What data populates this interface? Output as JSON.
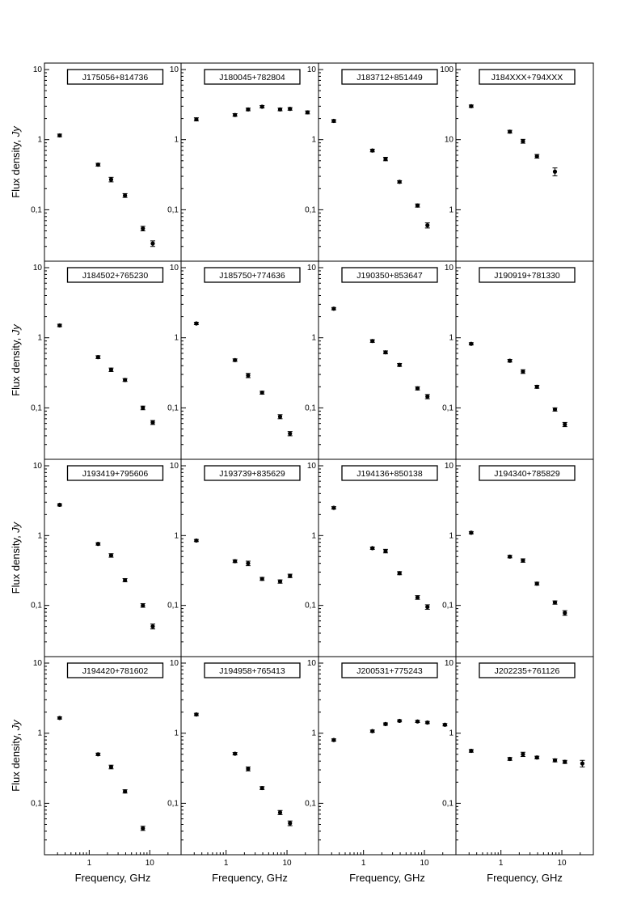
{
  "figure": {
    "y_label": "Flux density, ",
    "y_label_italic": "Jy",
    "x_label": "Frequency, GHz",
    "ticks": {
      "x": [
        "1",
        "10"
      ],
      "y_small": [
        "0,1",
        "1",
        "10"
      ],
      "y_large": [
        "1",
        "10",
        "100"
      ]
    }
  },
  "chart_data": [
    {
      "type": "scatter",
      "title": "J175056+814736",
      "xscale": "log",
      "yscale": "log",
      "xlim": [
        0.2,
        30
      ],
      "ylim": [
        0.02,
        10
      ],
      "x": [
        0.325,
        1.4,
        2.3,
        3.9,
        7.7,
        11.2
      ],
      "y": [
        1.15,
        0.44,
        0.27,
        0.16,
        0.054,
        0.033
      ],
      "err": [
        0.05,
        0.02,
        0.02,
        0.01,
        0.004,
        0.003
      ]
    },
    {
      "type": "scatter",
      "title": "J180045+782804",
      "xscale": "log",
      "yscale": "log",
      "xlim": [
        0.2,
        30
      ],
      "ylim": [
        0.02,
        10
      ],
      "x": [
        0.325,
        1.4,
        2.3,
        3.9,
        7.7,
        11.2,
        21.7
      ],
      "y": [
        1.95,
        2.25,
        2.7,
        2.95,
        2.7,
        2.75,
        2.45
      ],
      "err": [
        0.1,
        0.1,
        0.12,
        0.12,
        0.12,
        0.12,
        0.12
      ]
    },
    {
      "type": "scatter",
      "title": "J183712+851449",
      "xscale": "log",
      "yscale": "log",
      "xlim": [
        0.2,
        30
      ],
      "ylim": [
        0.02,
        10
      ],
      "x": [
        0.325,
        1.4,
        2.3,
        3.9,
        7.7,
        11.2
      ],
      "y": [
        1.85,
        0.7,
        0.53,
        0.25,
        0.115,
        0.06
      ],
      "err": [
        0.08,
        0.03,
        0.03,
        0.01,
        0.006,
        0.005
      ]
    },
    {
      "type": "scatter",
      "title": "J184XXX+794XXX",
      "xscale": "log",
      "yscale": "log",
      "xlim": [
        0.2,
        30
      ],
      "ylim": [
        0.2,
        100
      ],
      "x": [
        0.325,
        1.4,
        2.3,
        3.9,
        7.7
      ],
      "y": [
        30,
        13,
        9.5,
        5.8,
        3.5
      ],
      "err": [
        1.2,
        0.6,
        0.6,
        0.35,
        0.45
      ]
    },
    {
      "type": "scatter",
      "title": "J184502+765230",
      "xscale": "log",
      "yscale": "log",
      "xlim": [
        0.2,
        30
      ],
      "ylim": [
        0.02,
        10
      ],
      "x": [
        0.325,
        1.4,
        2.3,
        3.9,
        7.7,
        11.2
      ],
      "y": [
        1.5,
        0.53,
        0.35,
        0.25,
        0.1,
        0.062
      ],
      "err": [
        0.06,
        0.025,
        0.02,
        0.012,
        0.006,
        0.004
      ]
    },
    {
      "type": "scatter",
      "title": "J185750+774636",
      "xscale": "log",
      "yscale": "log",
      "xlim": [
        0.2,
        30
      ],
      "ylim": [
        0.02,
        10
      ],
      "x": [
        0.325,
        1.4,
        2.3,
        3.9,
        7.7,
        11.2
      ],
      "y": [
        1.6,
        0.48,
        0.29,
        0.165,
        0.075,
        0.043
      ],
      "err": [
        0.06,
        0.02,
        0.02,
        0.008,
        0.005,
        0.003
      ]
    },
    {
      "type": "scatter",
      "title": "J190350+853647",
      "xscale": "log",
      "yscale": "log",
      "xlim": [
        0.2,
        30
      ],
      "ylim": [
        0.02,
        10
      ],
      "x": [
        0.325,
        1.4,
        2.3,
        3.9,
        7.7,
        11.2
      ],
      "y": [
        2.6,
        0.9,
        0.62,
        0.41,
        0.19,
        0.145
      ],
      "err": [
        0.1,
        0.04,
        0.03,
        0.02,
        0.01,
        0.01
      ]
    },
    {
      "type": "scatter",
      "title": "J190919+781330",
      "xscale": "log",
      "yscale": "log",
      "xlim": [
        0.2,
        30
      ],
      "ylim": [
        0.02,
        10
      ],
      "x": [
        0.325,
        1.4,
        2.3,
        3.9,
        7.7,
        11.2
      ],
      "y": [
        0.82,
        0.47,
        0.33,
        0.2,
        0.095,
        0.058
      ],
      "err": [
        0.03,
        0.02,
        0.02,
        0.01,
        0.005,
        0.004
      ]
    },
    {
      "type": "scatter",
      "title": "J193419+795606",
      "xscale": "log",
      "yscale": "log",
      "xlim": [
        0.2,
        30
      ],
      "ylim": [
        0.02,
        10
      ],
      "x": [
        0.325,
        1.4,
        2.3,
        3.9,
        7.7,
        11.2
      ],
      "y": [
        2.75,
        0.76,
        0.52,
        0.23,
        0.1,
        0.05
      ],
      "err": [
        0.1,
        0.03,
        0.03,
        0.012,
        0.006,
        0.004
      ]
    },
    {
      "type": "scatter",
      "title": "J193739+835629",
      "xscale": "log",
      "yscale": "log",
      "xlim": [
        0.2,
        30
      ],
      "ylim": [
        0.02,
        10
      ],
      "x": [
        0.325,
        1.4,
        2.3,
        3.9,
        7.7,
        11.2
      ],
      "y": [
        0.85,
        0.43,
        0.4,
        0.24,
        0.22,
        0.265
      ],
      "err": [
        0.03,
        0.02,
        0.03,
        0.012,
        0.012,
        0.015
      ]
    },
    {
      "type": "scatter",
      "title": "J194136+850138",
      "xscale": "log",
      "yscale": "log",
      "xlim": [
        0.2,
        30
      ],
      "ylim": [
        0.02,
        10
      ],
      "x": [
        0.325,
        1.4,
        2.3,
        3.9,
        7.7,
        11.2
      ],
      "y": [
        2.5,
        0.66,
        0.6,
        0.29,
        0.13,
        0.095
      ],
      "err": [
        0.1,
        0.025,
        0.035,
        0.015,
        0.008,
        0.007
      ]
    },
    {
      "type": "scatter",
      "title": "J194340+785829",
      "xscale": "log",
      "yscale": "log",
      "xlim": [
        0.2,
        30
      ],
      "ylim": [
        0.02,
        10
      ],
      "x": [
        0.325,
        1.4,
        2.3,
        3.9,
        7.7,
        11.2
      ],
      "y": [
        1.1,
        0.5,
        0.44,
        0.205,
        0.11,
        0.078
      ],
      "err": [
        0.04,
        0.02,
        0.025,
        0.01,
        0.006,
        0.006
      ]
    },
    {
      "type": "scatter",
      "title": "J194420+781602",
      "xscale": "log",
      "yscale": "log",
      "xlim": [
        0.2,
        30
      ],
      "ylim": [
        0.02,
        10
      ],
      "x": [
        0.325,
        1.4,
        2.3,
        3.9,
        7.7
      ],
      "y": [
        1.65,
        0.5,
        0.33,
        0.148,
        0.044
      ],
      "err": [
        0.06,
        0.02,
        0.02,
        0.008,
        0.003
      ]
    },
    {
      "type": "scatter",
      "title": "J194958+765413",
      "xscale": "log",
      "yscale": "log",
      "xlim": [
        0.2,
        30
      ],
      "ylim": [
        0.02,
        10
      ],
      "x": [
        0.325,
        1.4,
        2.3,
        3.9,
        7.7,
        11.2
      ],
      "y": [
        1.85,
        0.51,
        0.31,
        0.165,
        0.074,
        0.052
      ],
      "err": [
        0.07,
        0.02,
        0.02,
        0.008,
        0.005,
        0.004
      ]
    },
    {
      "type": "scatter",
      "title": "J200531+775243",
      "xscale": "log",
      "yscale": "log",
      "xlim": [
        0.2,
        30
      ],
      "ylim": [
        0.02,
        10
      ],
      "x": [
        0.325,
        1.4,
        2.3,
        3.9,
        7.7,
        11.2,
        21.7
      ],
      "y": [
        0.8,
        1.07,
        1.35,
        1.5,
        1.47,
        1.42,
        1.32
      ],
      "err": [
        0.03,
        0.04,
        0.05,
        0.05,
        0.05,
        0.05,
        0.05
      ]
    },
    {
      "type": "scatter",
      "title": "J202235+761126",
      "xscale": "log",
      "yscale": "log",
      "xlim": [
        0.2,
        30
      ],
      "ylim": [
        0.02,
        10
      ],
      "x": [
        0.325,
        1.4,
        2.3,
        3.9,
        7.7,
        11.2,
        21.7
      ],
      "y": [
        0.56,
        0.43,
        0.5,
        0.45,
        0.41,
        0.39,
        0.37
      ],
      "err": [
        0.025,
        0.02,
        0.035,
        0.02,
        0.02,
        0.02,
        0.04
      ]
    }
  ]
}
